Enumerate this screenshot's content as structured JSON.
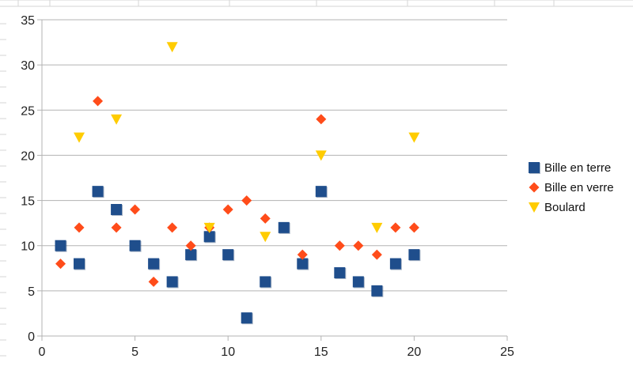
{
  "chart_data": {
    "type": "scatter",
    "xlim": [
      0,
      25
    ],
    "ylim": [
      0,
      35
    ],
    "x_ticks": [
      0,
      5,
      10,
      15,
      20,
      25
    ],
    "y_ticks": [
      0,
      5,
      10,
      15,
      20,
      25,
      30,
      35
    ],
    "grid": {
      "horizontal": true,
      "vertical": false
    },
    "legend_position": "right",
    "series": [
      {
        "name": "Bille en terre",
        "marker": "square",
        "color": "#1f4e8c",
        "points": [
          {
            "x": 1,
            "y": 10
          },
          {
            "x": 2,
            "y": 8
          },
          {
            "x": 3,
            "y": 16
          },
          {
            "x": 4,
            "y": 14
          },
          {
            "x": 5,
            "y": 10
          },
          {
            "x": 6,
            "y": 8
          },
          {
            "x": 7,
            "y": 6
          },
          {
            "x": 8,
            "y": 9
          },
          {
            "x": 9,
            "y": 11
          },
          {
            "x": 10,
            "y": 9
          },
          {
            "x": 11,
            "y": 2
          },
          {
            "x": 12,
            "y": 6
          },
          {
            "x": 13,
            "y": 12
          },
          {
            "x": 14,
            "y": 8
          },
          {
            "x": 15,
            "y": 16
          },
          {
            "x": 16,
            "y": 7
          },
          {
            "x": 17,
            "y": 6
          },
          {
            "x": 18,
            "y": 5
          },
          {
            "x": 19,
            "y": 8
          },
          {
            "x": 20,
            "y": 9
          }
        ]
      },
      {
        "name": "Bille en verre",
        "marker": "diamond",
        "color": "#ff4c1a",
        "points": [
          {
            "x": 1,
            "y": 8
          },
          {
            "x": 2,
            "y": 12
          },
          {
            "x": 3,
            "y": 26
          },
          {
            "x": 4,
            "y": 12
          },
          {
            "x": 5,
            "y": 14
          },
          {
            "x": 6,
            "y": 6
          },
          {
            "x": 7,
            "y": 12
          },
          {
            "x": 8,
            "y": 10
          },
          {
            "x": 9,
            "y": 12
          },
          {
            "x": 10,
            "y": 14
          },
          {
            "x": 11,
            "y": 15
          },
          {
            "x": 12,
            "y": 13
          },
          {
            "x": 14,
            "y": 9
          },
          {
            "x": 15,
            "y": 24
          },
          {
            "x": 16,
            "y": 10
          },
          {
            "x": 17,
            "y": 10
          },
          {
            "x": 18,
            "y": 9
          },
          {
            "x": 19,
            "y": 12
          },
          {
            "x": 20,
            "y": 12
          }
        ]
      },
      {
        "name": "Boulard",
        "marker": "triangle-down",
        "color": "#ffcc00",
        "points": [
          {
            "x": 2,
            "y": 22
          },
          {
            "x": 4,
            "y": 24
          },
          {
            "x": 7,
            "y": 32
          },
          {
            "x": 9,
            "y": 12
          },
          {
            "x": 12,
            "y": 11
          },
          {
            "x": 15,
            "y": 20
          },
          {
            "x": 18,
            "y": 12
          },
          {
            "x": 20,
            "y": 22
          }
        ]
      }
    ]
  }
}
